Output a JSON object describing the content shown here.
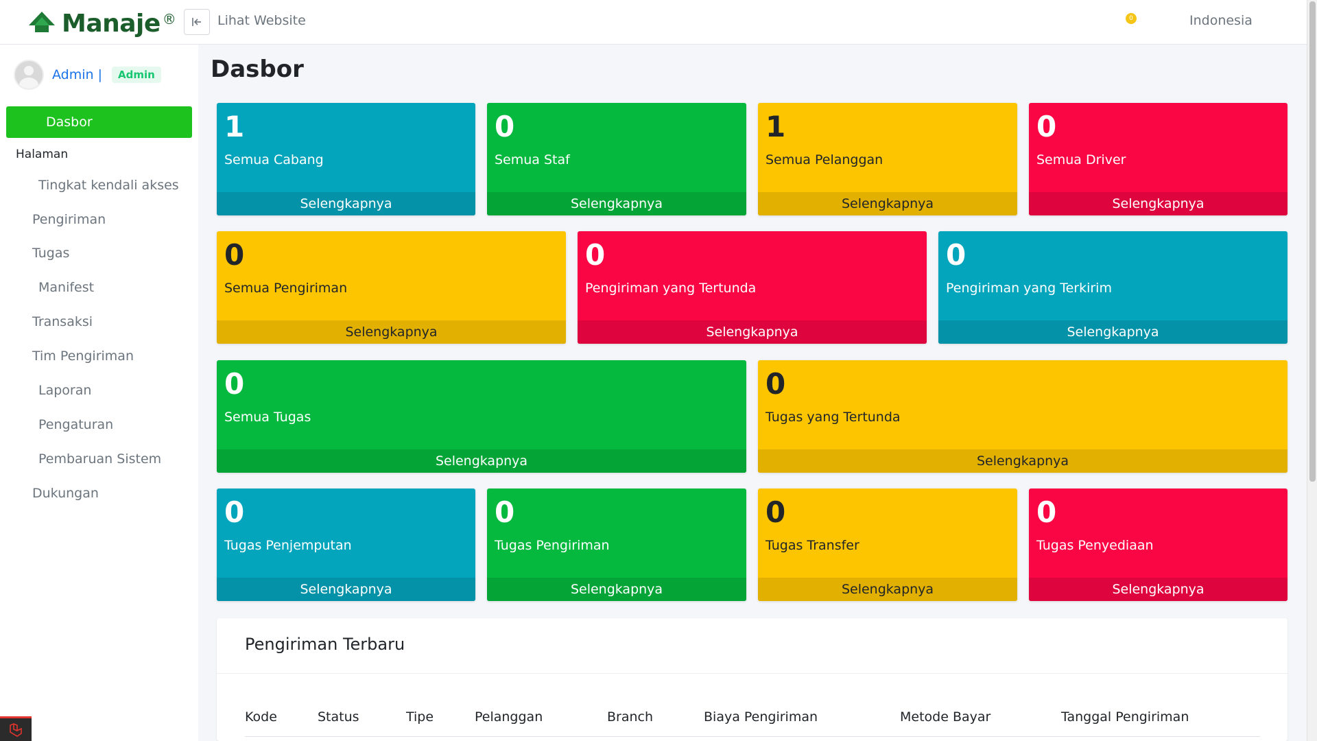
{
  "header": {
    "brand_name": "Manaje",
    "brand_mark": "®",
    "view_site": "Lihat Website",
    "notification_count": "0",
    "language": "Indonesia"
  },
  "sidebar": {
    "user_name": "Admin |",
    "user_role": "Admin",
    "active_item": "Dasbor",
    "section": "Halaman",
    "items": [
      "Tingkat kendali akses",
      "Pengiriman",
      "Tugas",
      "Manifest",
      "Transaksi",
      "Tim Pengiriman",
      "Laporan",
      "Pengaturan",
      "Pembaruan Sistem",
      "Dukungan"
    ]
  },
  "main": {
    "title": "Dasbor",
    "more_label": "Selengkapnya",
    "cards": [
      {
        "value": "1",
        "label": "Semua Cabang"
      },
      {
        "value": "0",
        "label": "Semua Staf"
      },
      {
        "value": "1",
        "label": "Semua Pelanggan"
      },
      {
        "value": "0",
        "label": "Semua Driver"
      },
      {
        "value": "0",
        "label": "Semua Pengiriman"
      },
      {
        "value": "0",
        "label": "Pengiriman yang Tertunda"
      },
      {
        "value": "0",
        "label": "Pengiriman yang Terkirim"
      },
      {
        "value": "0",
        "label": "Semua Tugas"
      },
      {
        "value": "0",
        "label": "Tugas yang Tertunda"
      },
      {
        "value": "0",
        "label": "Tugas Penjemputan"
      },
      {
        "value": "0",
        "label": "Tugas Pengiriman"
      },
      {
        "value": "0",
        "label": "Tugas Transfer"
      },
      {
        "value": "0",
        "label": "Tugas Penyediaan"
      }
    ],
    "recent": {
      "title": "Pengiriman Terbaru",
      "columns": [
        "Kode",
        "Status",
        "Tipe",
        "Pelanggan",
        "Branch",
        "Biaya Pengiriman",
        "Metode Bayar",
        "Tanggal Pengiriman"
      ]
    }
  },
  "colors": {
    "teal": "#03a5bd",
    "green": "#05b93f",
    "yellow": "#fdc500",
    "red": "#fa0645",
    "sidebar_active": "#1ec21e",
    "brand": "#1c5d2c"
  },
  "icons": {
    "collapse": "arrow-bar-left-icon",
    "brand": "leaf-logo-icon",
    "framework": "laravel-icon"
  }
}
